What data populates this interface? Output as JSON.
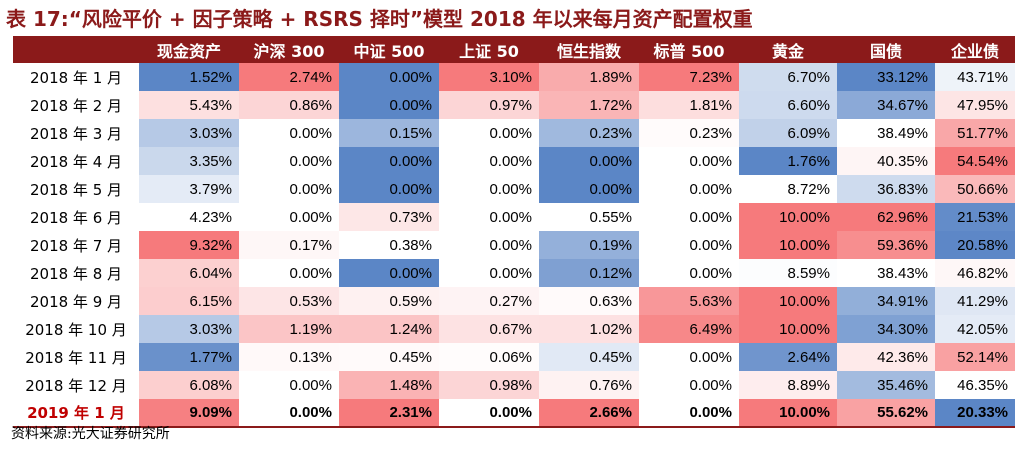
{
  "title": "表 17:“风险平价 + 因子策略 + RSRS 择时”模型 2018 年以来每月资产配置权重",
  "source": "资料来源:光大证券研究所",
  "table": {
    "headers": [
      "",
      "现金资产",
      "沪深 300",
      "中证 500",
      "上证 50",
      "恒生指数",
      "标普 500",
      "黄金",
      "国债",
      "企业债"
    ],
    "rows": [
      {
        "label": "2018 年 1 月",
        "values": [
          "1.52%",
          "2.74%",
          "0.00%",
          "3.10%",
          "1.89%",
          "7.23%",
          "6.70%",
          "33.12%",
          "43.71%"
        ]
      },
      {
        "label": "2018 年 2 月",
        "values": [
          "5.43%",
          "0.86%",
          "0.00%",
          "0.97%",
          "1.72%",
          "1.81%",
          "6.60%",
          "34.67%",
          "47.95%"
        ]
      },
      {
        "label": "2018 年 3 月",
        "values": [
          "3.03%",
          "0.00%",
          "0.15%",
          "0.00%",
          "0.23%",
          "0.23%",
          "6.09%",
          "38.49%",
          "51.77%"
        ]
      },
      {
        "label": "2018 年 4 月",
        "values": [
          "3.35%",
          "0.00%",
          "0.00%",
          "0.00%",
          "0.00%",
          "0.00%",
          "1.76%",
          "40.35%",
          "54.54%"
        ]
      },
      {
        "label": "2018 年 5 月",
        "values": [
          "3.79%",
          "0.00%",
          "0.00%",
          "0.00%",
          "0.00%",
          "0.00%",
          "8.72%",
          "36.83%",
          "50.66%"
        ]
      },
      {
        "label": "2018 年 6 月",
        "values": [
          "4.23%",
          "0.00%",
          "0.73%",
          "0.00%",
          "0.55%",
          "0.00%",
          "10.00%",
          "62.96%",
          "21.53%"
        ]
      },
      {
        "label": "2018 年 7 月",
        "values": [
          "9.32%",
          "0.17%",
          "0.38%",
          "0.00%",
          "0.19%",
          "0.00%",
          "10.00%",
          "59.36%",
          "20.58%"
        ]
      },
      {
        "label": "2018 年 8 月",
        "values": [
          "6.04%",
          "0.00%",
          "0.00%",
          "0.00%",
          "0.12%",
          "0.00%",
          "8.59%",
          "38.43%",
          "46.82%"
        ]
      },
      {
        "label": "2018 年 9 月",
        "values": [
          "6.15%",
          "0.53%",
          "0.59%",
          "0.27%",
          "0.63%",
          "5.63%",
          "10.00%",
          "34.91%",
          "41.29%"
        ]
      },
      {
        "label": "2018 年 10 月",
        "values": [
          "3.03%",
          "1.19%",
          "1.24%",
          "0.67%",
          "1.02%",
          "6.49%",
          "10.00%",
          "34.30%",
          "42.05%"
        ]
      },
      {
        "label": "2018 年 11 月",
        "values": [
          "1.77%",
          "0.13%",
          "0.45%",
          "0.06%",
          "0.45%",
          "0.00%",
          "2.64%",
          "42.36%",
          "52.14%"
        ]
      },
      {
        "label": "2018 年 12 月",
        "values": [
          "6.08%",
          "0.00%",
          "1.48%",
          "0.98%",
          "0.76%",
          "0.00%",
          "8.89%",
          "35.46%",
          "46.35%"
        ]
      },
      {
        "label": "2019 年 1 月",
        "values": [
          "9.09%",
          "0.00%",
          "2.31%",
          "0.00%",
          "2.66%",
          "0.00%",
          "10.00%",
          "55.62%",
          "20.33%"
        ]
      }
    ],
    "highlight_row_index": 12
  },
  "colors": {
    "header_bg": "#8b1a1a",
    "header_text": "#ffffff",
    "low_color": "#5b86c6",
    "mid_color": "#ffffff",
    "high_color": "#f67a7c",
    "highlight_label_text": "#c00000"
  }
}
